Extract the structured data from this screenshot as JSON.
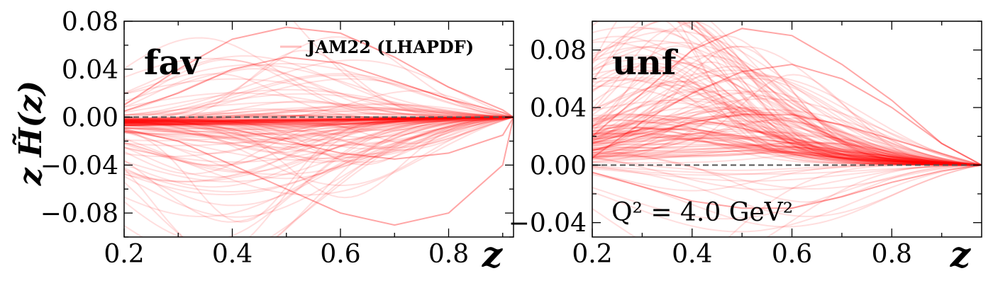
{
  "figure": {
    "ylabel": "z H̃(z)",
    "legend": "JAM22 (LHAPDF)",
    "note": "Q² = 4.0 GeV²"
  },
  "colors": {
    "replica": "#ff0000",
    "zero_line": "#555555",
    "axes": "#000000"
  },
  "chart_data": [
    {
      "type": "line",
      "panel": "fav",
      "title": "fav",
      "xlabel": "z",
      "ylabel": "z H̃(z)",
      "xlim": [
        0.2,
        0.92
      ],
      "ylim": [
        -0.1,
        0.08
      ],
      "xticks": [
        "0.2",
        "0.4",
        "0.6",
        "0.8"
      ],
      "yticks": [
        "0.08",
        "0.04",
        "0.00",
        "−0.04",
        "−0.08"
      ],
      "reference_line": 0.0,
      "series": [
        {
          "x": [
            0.2,
            0.3,
            0.4,
            0.5,
            0.6,
            0.7,
            0.8,
            0.9,
            0.92
          ],
          "y": [
            -0.005,
            -0.006,
            -0.006,
            -0.006,
            -0.005,
            -0.004,
            -0.003,
            -0.002,
            0.0
          ]
        },
        {
          "x": [
            0.2,
            0.3,
            0.4,
            0.5,
            0.6,
            0.7,
            0.8,
            0.9,
            0.92
          ],
          "y": [
            -0.002,
            -0.004,
            -0.01,
            -0.02,
            -0.03,
            -0.035,
            -0.03,
            -0.015,
            0.0
          ]
        },
        {
          "x": [
            0.2,
            0.3,
            0.4,
            0.5,
            0.6,
            0.7,
            0.8,
            0.9,
            0.92
          ],
          "y": [
            0.005,
            0.02,
            0.04,
            0.05,
            0.045,
            0.03,
            0.015,
            0.004,
            0.0
          ]
        },
        {
          "x": [
            0.2,
            0.3,
            0.4,
            0.5,
            0.6,
            0.7,
            0.8,
            0.9,
            0.92
          ],
          "y": [
            -0.01,
            -0.02,
            -0.04,
            -0.06,
            -0.08,
            -0.09,
            -0.08,
            -0.04,
            0.0
          ]
        },
        {
          "x": [
            0.2,
            0.3,
            0.4,
            0.5,
            0.6,
            0.7,
            0.8,
            0.9,
            0.92
          ],
          "y": [
            0.01,
            0.04,
            0.065,
            0.075,
            0.07,
            0.05,
            0.025,
            0.006,
            0.0
          ]
        }
      ]
    },
    {
      "type": "line",
      "panel": "unf",
      "title": "unf",
      "xlabel": "z",
      "ylabel": "",
      "xlim": [
        0.2,
        0.98
      ],
      "ylim": [
        -0.05,
        0.1
      ],
      "xticks": [
        "0.2",
        "0.4",
        "0.6",
        "0.8"
      ],
      "yticks": [
        "0.08",
        "0.04",
        "0.00",
        "−0.04"
      ],
      "reference_line": 0.0,
      "series": [
        {
          "x": [
            0.2,
            0.3,
            0.4,
            0.5,
            0.6,
            0.7,
            0.8,
            0.9,
            0.98
          ],
          "y": [
            0.01,
            0.02,
            0.03,
            0.035,
            0.035,
            0.028,
            0.018,
            0.008,
            0.0
          ]
        },
        {
          "x": [
            0.2,
            0.3,
            0.4,
            0.5,
            0.6,
            0.7,
            0.8,
            0.9,
            0.98
          ],
          "y": [
            0.005,
            0.03,
            0.05,
            0.065,
            0.07,
            0.06,
            0.04,
            0.015,
            0.0
          ]
        },
        {
          "x": [
            0.2,
            0.3,
            0.4,
            0.5,
            0.6,
            0.7,
            0.8,
            0.9,
            0.98
          ],
          "y": [
            0.015,
            0.025,
            0.025,
            0.02,
            0.015,
            0.01,
            0.006,
            0.002,
            0.0
          ]
        },
        {
          "x": [
            0.2,
            0.3,
            0.4,
            0.5,
            0.6,
            0.7,
            0.8,
            0.9,
            0.98
          ],
          "y": [
            -0.005,
            -0.015,
            -0.025,
            -0.03,
            -0.03,
            -0.022,
            -0.012,
            -0.004,
            0.0
          ]
        },
        {
          "x": [
            0.2,
            0.3,
            0.4,
            0.5,
            0.6,
            0.7,
            0.8,
            0.9,
            0.98
          ],
          "y": [
            0.02,
            0.05,
            0.08,
            0.095,
            0.09,
            0.07,
            0.045,
            0.015,
            0.0
          ]
        }
      ]
    }
  ]
}
